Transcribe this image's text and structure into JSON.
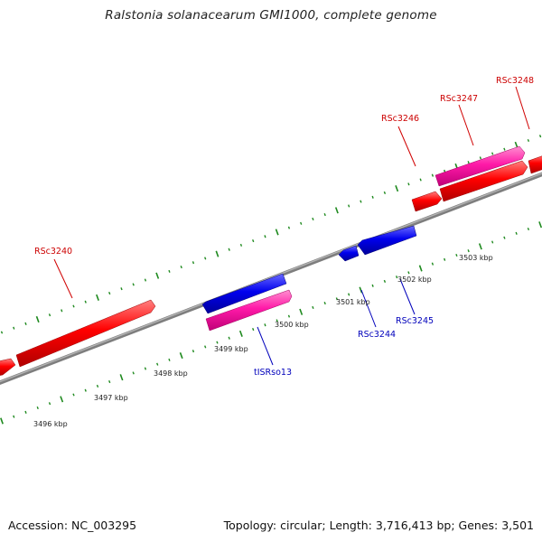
{
  "title": "Ralstonia solanacearum GMI1000, complete genome",
  "footer": {
    "accession": "Accession: NC_003295",
    "summary": "Topology: circular; Length: 3,716,413 bp; Genes: 3,501"
  },
  "colors": {
    "forward_gene": "#ff0000",
    "reverse_gene": "#0000ee",
    "rna": "#ff1aa8",
    "tick": "#1f8a1f",
    "backbone": "#888888",
    "label_red": "#cc0000",
    "label_blue": "#0000bb"
  },
  "scale_labels": [
    "3496 kbp",
    "3497 kbp",
    "3498 kbp",
    "3499 kbp",
    "3500 kbp",
    "3501 kbp",
    "3502 kbp",
    "3503 kbp"
  ],
  "gene_labels": [
    {
      "text": "RSc3240",
      "color": "red"
    },
    {
      "text": "RSc3246",
      "color": "red"
    },
    {
      "text": "RSc3247",
      "color": "red"
    },
    {
      "text": "RSc3248",
      "color": "red"
    },
    {
      "text": "tISRso13",
      "color": "blue"
    },
    {
      "text": "RSc3244",
      "color": "blue"
    },
    {
      "text": "RSc3245",
      "color": "blue"
    }
  ]
}
